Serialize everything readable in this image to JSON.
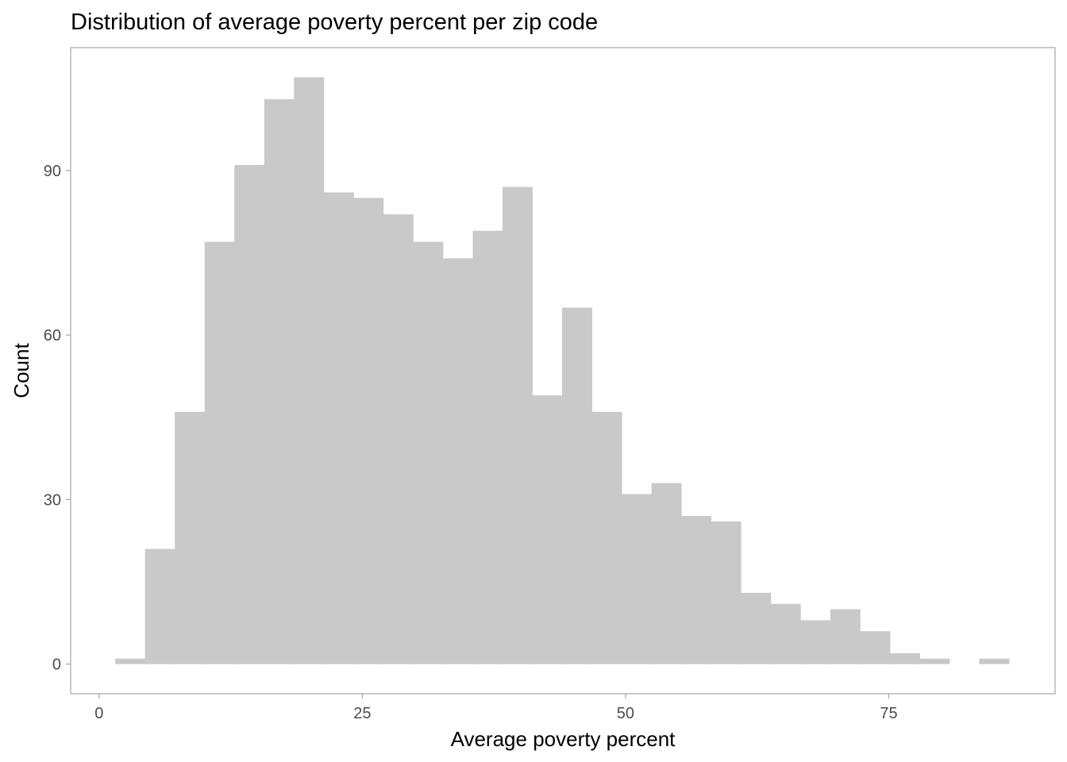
{
  "chart_data": {
    "type": "bar",
    "title": "Distribution of average poverty percent per zip code",
    "xlabel": "Average poverty percent",
    "ylabel": "Count",
    "x_ticks": [
      {
        "value": 0,
        "label": "0"
      },
      {
        "value": 25,
        "label": "25"
      },
      {
        "value": 50,
        "label": "50"
      },
      {
        "value": 75,
        "label": "75"
      }
    ],
    "y_ticks": [
      {
        "value": 0,
        "label": "0"
      },
      {
        "value": 30,
        "label": "30"
      },
      {
        "value": 60,
        "label": "60"
      },
      {
        "value": 90,
        "label": "90"
      }
    ],
    "xlim": [
      -2.7,
      90.8
    ],
    "ylim": [
      -5.4,
      112.4
    ],
    "bin_width": 2.83,
    "bar_color": "#c9c9c9",
    "bins": [
      {
        "start": 1.53,
        "count": 1
      },
      {
        "start": 4.36,
        "count": 21
      },
      {
        "start": 7.19,
        "count": 46
      },
      {
        "start": 10.02,
        "count": 77
      },
      {
        "start": 12.85,
        "count": 91
      },
      {
        "start": 15.68,
        "count": 103
      },
      {
        "start": 18.51,
        "count": 107
      },
      {
        "start": 21.34,
        "count": 86
      },
      {
        "start": 24.17,
        "count": 85
      },
      {
        "start": 27.0,
        "count": 82
      },
      {
        "start": 29.83,
        "count": 77
      },
      {
        "start": 32.66,
        "count": 74
      },
      {
        "start": 35.49,
        "count": 79
      },
      {
        "start": 38.32,
        "count": 87
      },
      {
        "start": 41.15,
        "count": 49
      },
      {
        "start": 43.98,
        "count": 65
      },
      {
        "start": 46.81,
        "count": 46
      },
      {
        "start": 49.64,
        "count": 31
      },
      {
        "start": 52.47,
        "count": 33
      },
      {
        "start": 55.3,
        "count": 27
      },
      {
        "start": 58.13,
        "count": 26
      },
      {
        "start": 60.96,
        "count": 13
      },
      {
        "start": 63.79,
        "count": 11
      },
      {
        "start": 66.62,
        "count": 8
      },
      {
        "start": 69.45,
        "count": 10
      },
      {
        "start": 72.28,
        "count": 6
      },
      {
        "start": 75.11,
        "count": 2
      },
      {
        "start": 77.94,
        "count": 1
      },
      {
        "start": 80.77,
        "count": 0
      },
      {
        "start": 83.6,
        "count": 1
      }
    ]
  }
}
